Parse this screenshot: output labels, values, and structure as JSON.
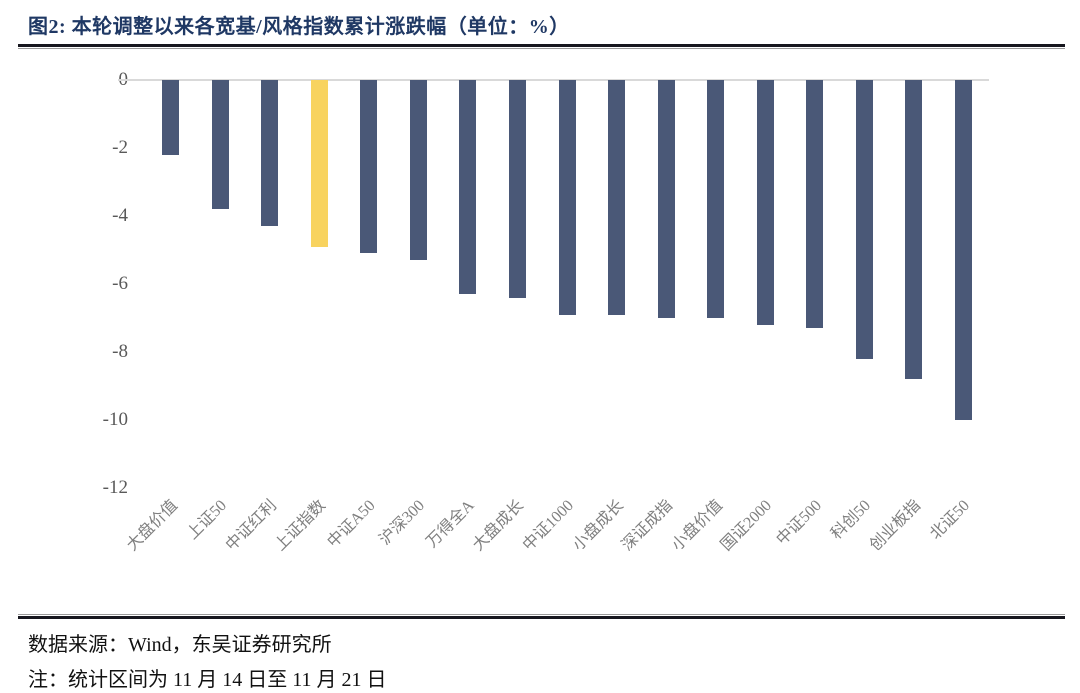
{
  "figure": {
    "title": "图2:  本轮调整以来各宽基/风格指数累计涨跌幅（单位：%）",
    "footer": {
      "source": "数据来源：Wind，东吴证券研究所",
      "note": "注：统计区间为 11 月 14 日至 11 月 21 日"
    },
    "colors": {
      "title": "#1F3864",
      "bar": "#4A5877",
      "highlight": "#F8D35F",
      "tick_label": "#595959",
      "category_label": "#7F7F7F",
      "axis_line": "#D9D9D9",
      "rule": "#16161E"
    }
  },
  "chart_data": {
    "type": "bar",
    "title": "本轮调整以来各宽基/风格指数累计涨跌幅",
    "unit": "%",
    "categories": [
      "大盘价值",
      "上证50",
      "中证红利",
      "上证指数",
      "中证A50",
      "沪深300",
      "万得全A",
      "大盘成长",
      "中证1000",
      "小盘成长",
      "深证成指",
      "小盘价值",
      "国证2000",
      "中证500",
      "科创50",
      "创业板指",
      "北证50"
    ],
    "values": [
      -2.2,
      -3.8,
      -4.3,
      -4.9,
      -5.1,
      -5.3,
      -6.3,
      -6.4,
      -6.9,
      -6.9,
      -7.0,
      -7.0,
      -7.2,
      -7.3,
      -8.2,
      -8.8,
      -10.0
    ],
    "highlight_index": 3,
    "highlight_category": "上证指数",
    "yticks": [
      0,
      -2,
      -4,
      -6,
      -8,
      -10,
      -12
    ],
    "ylim": [
      -12,
      0
    ],
    "grid": false,
    "legend": null
  }
}
